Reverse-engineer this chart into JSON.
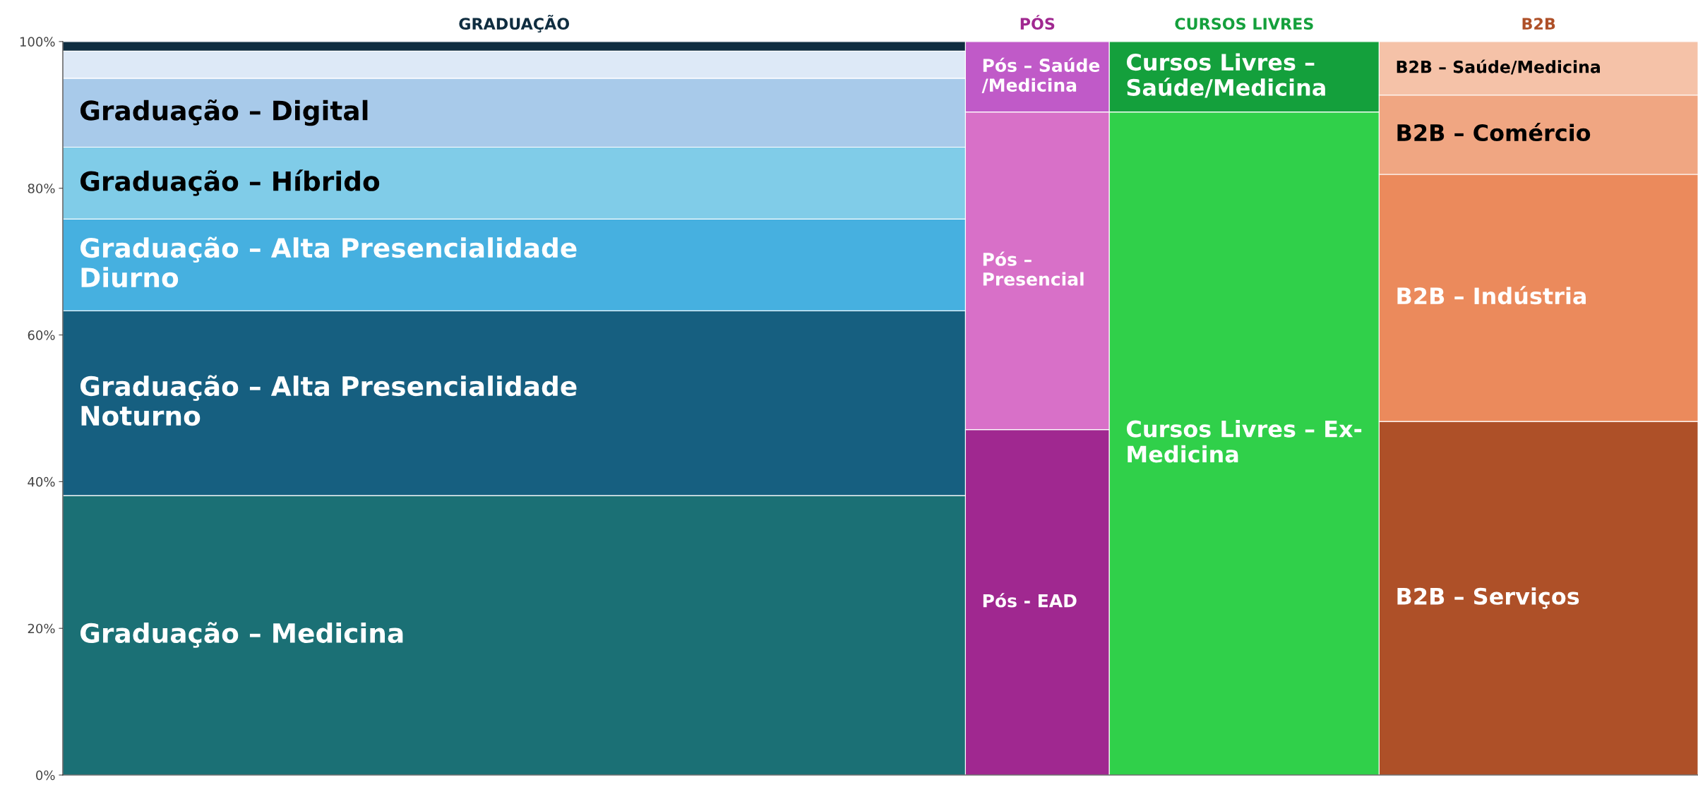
{
  "chart_data": {
    "type": "bar",
    "stacked": true,
    "categories": [
      "GRADUAÇÃO",
      "PÓS",
      "CURSOS LIVRES",
      "B2B"
    ],
    "ylim": [
      0,
      100
    ],
    "yticks": [
      {
        "value": 0,
        "label": "0%"
      },
      {
        "value": 20,
        "label": "20%"
      },
      {
        "value": 40,
        "label": "40%"
      },
      {
        "value": 60,
        "label": "60%"
      },
      {
        "value": 80,
        "label": "80%"
      },
      {
        "value": 100,
        "label": "100%"
      }
    ],
    "tick_labels": "y",
    "grid": false,
    "legend": false,
    "series": [
      {
        "name": "Graduação – Medicina",
        "color": "#1b7075",
        "values": [
          38.1,
          null,
          null,
          null
        ]
      },
      {
        "name": "Graduação – Alta Presencialidade\nNoturno",
        "color": "#165f80",
        "values": [
          25.2,
          null,
          null,
          null
        ]
      },
      {
        "name": "Graduação – Alta Presencialidade\nDiurno",
        "color": "#46b0e0",
        "values": [
          12.5,
          null,
          null,
          null
        ]
      },
      {
        "name": "Graduação – Híbrido",
        "color": "#80cce8",
        "values": [
          9.8,
          null,
          null,
          null
        ]
      },
      {
        "name": "Graduação – Digital",
        "color": "#a8caea",
        "values": [
          9.4,
          null,
          null,
          null
        ]
      },
      {
        "color": "#dde9f7",
        "values": [
          3.7,
          null,
          null,
          null
        ]
      },
      {
        "color": "#0f2d40",
        "values": [
          1.3,
          null,
          null,
          null
        ]
      },
      {
        "name": "Pós - EAD",
        "color": "#a02890",
        "values": [
          null,
          47.1,
          null,
          null
        ]
      },
      {
        "name": "Pós –\nPresencial",
        "color": "#d870c8",
        "values": [
          null,
          43.3,
          null,
          null
        ]
      },
      {
        "name": "Pós – Saúde\n/Medicina",
        "color": "#c05ac8",
        "values": [
          null,
          9.6,
          null,
          null
        ]
      },
      {
        "name": "Cursos Livres – Ex-\nMedicina",
        "color": "#30d04a",
        "values": [
          null,
          null,
          90.4,
          null
        ]
      },
      {
        "name": "Cursos Livres –\nSaúde/Medicina",
        "color": "#14a03c",
        "values": [
          null,
          null,
          9.6,
          null
        ]
      },
      {
        "name": "B2B – Serviços",
        "color": "#ae5028",
        "values": [
          null,
          null,
          null,
          48.2
        ]
      },
      {
        "name": "B2B – Indústria",
        "color": "#eb8a5c",
        "values": [
          null,
          null,
          null,
          33.7
        ]
      },
      {
        "name": "B2B – Comércio",
        "color": "#f0a682",
        "values": [
          null,
          null,
          null,
          10.8
        ]
      },
      {
        "name": "B2B – Saúde/Medicina",
        "color": "#f5c2a8",
        "values": [
          null,
          null,
          null,
          7.3
        ]
      }
    ]
  }
}
